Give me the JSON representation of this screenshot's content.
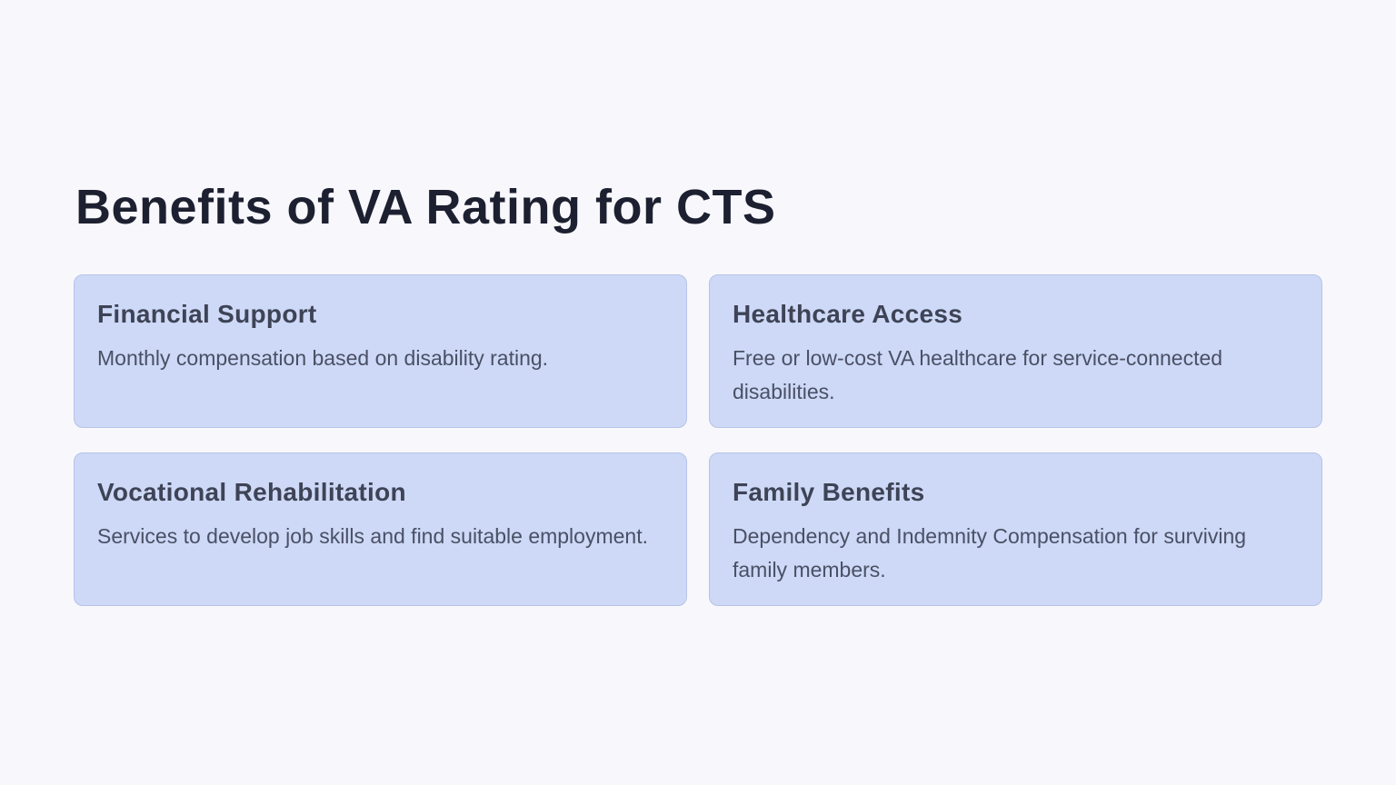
{
  "colors": {
    "page_bg": "#f8f8fc",
    "card_bg": "#cdd9f6",
    "card_border": "#b7c3e8",
    "title_text": "#1d2030",
    "heading_text": "#3e4356",
    "body_text": "#4a5065"
  },
  "slide": {
    "title": "Benefits of VA Rating for CTS",
    "cards": [
      {
        "heading": "Financial Support",
        "body": "Monthly compensation based on disability rating."
      },
      {
        "heading": "Healthcare Access",
        "body": "Free or low-cost VA healthcare for service-connected disabilities."
      },
      {
        "heading": "Vocational Rehabilitation",
        "body": "Services to develop job skills and find suitable employment."
      },
      {
        "heading": "Family Benefits",
        "body": "Dependency and Indemnity Compensation for surviving family members."
      }
    ]
  }
}
